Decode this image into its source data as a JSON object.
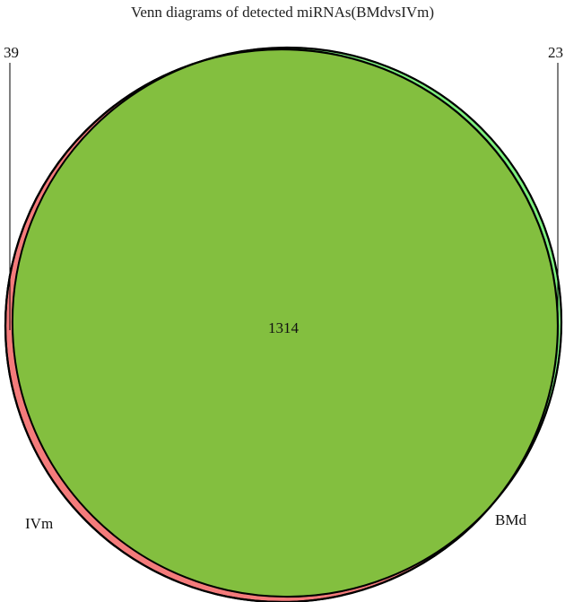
{
  "title": "Venn diagrams of detected miRNAs(BMdvsIVm)",
  "sets": [
    {
      "id": "ivm",
      "name": "IVm",
      "only_count": "39",
      "color": "#f47b7b"
    },
    {
      "id": "bmd",
      "name": "BMd",
      "only_count": "23",
      "color": "#7ef07e"
    }
  ],
  "intersection": {
    "count": "1314",
    "color": "#83bf3f"
  },
  "outline_color": "#000000"
}
